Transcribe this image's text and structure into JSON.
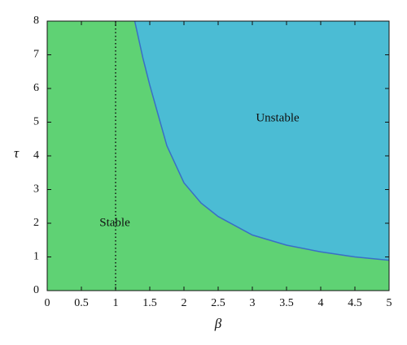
{
  "chart_data": {
    "type": "area",
    "x_label": "β",
    "y_label": "τ",
    "x": [
      1.28,
      1.4,
      1.5,
      1.75,
      2,
      2.25,
      2.5,
      3,
      3.5,
      4,
      4.5,
      5
    ],
    "series": [
      {
        "name": "Unstable",
        "color": "#4bbcd4",
        "line_color": "#3a6ec6",
        "values": [
          8,
          6.9,
          6.1,
          4.3,
          3.2,
          2.6,
          2.2,
          1.65,
          1.35,
          1.15,
          1.0,
          0.9
        ]
      }
    ],
    "background_region": {
      "name": "Stable",
      "color": "#5fd274"
    },
    "reference_x": 1,
    "xlim": [
      0,
      5
    ],
    "xticks": [
      0,
      0.5,
      1,
      1.5,
      2,
      2.5,
      3,
      3.5,
      4,
      4.5,
      5
    ],
    "ylim": [
      0,
      8
    ],
    "yticks": [
      0,
      1,
      2,
      3,
      4,
      5,
      6,
      7,
      8
    ]
  }
}
